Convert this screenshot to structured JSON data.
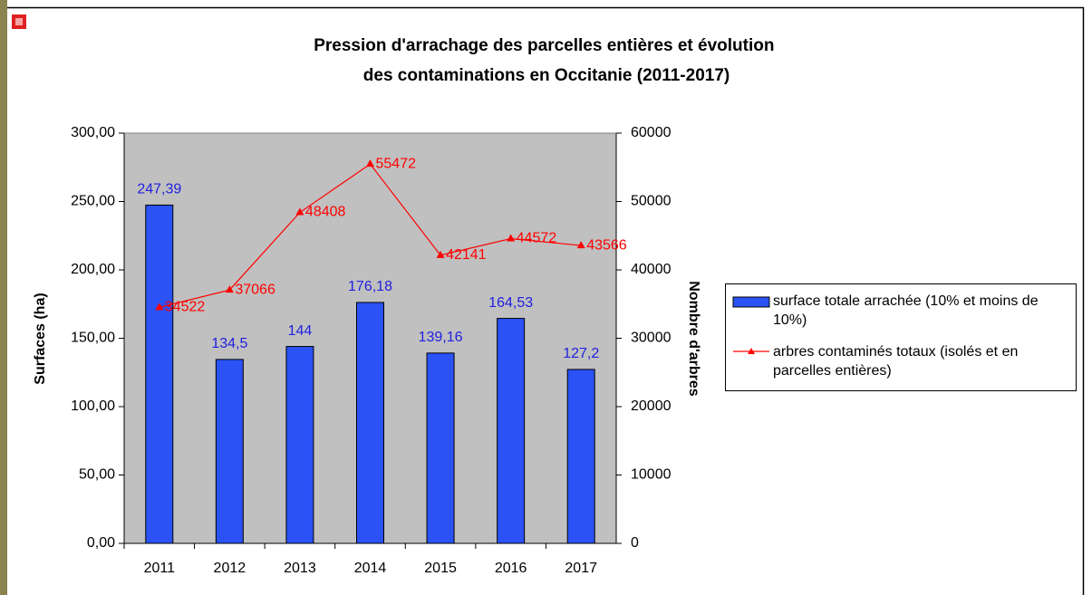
{
  "chart_data": {
    "type": "bar",
    "title": "Pression d'arrachage des parcelles entières et évolution des contaminations en Occitanie (2011-2017)",
    "categories": [
      "2011",
      "2012",
      "2013",
      "2014",
      "2015",
      "2016",
      "2017"
    ],
    "series": [
      {
        "name": "surface totale arrachée (10% et moins de 10%)",
        "type": "bar",
        "color": "#2a52f5",
        "values": [
          247.39,
          134.5,
          144,
          176.18,
          139.16,
          164.53,
          127.2
        ],
        "value_labels": [
          "247,39",
          "134,5",
          "144",
          "176,18",
          "139,16",
          "164,53",
          "127,2"
        ]
      },
      {
        "name": "arbres contaminés totaux (isolés et en parcelles entières)",
        "type": "line",
        "axis": "y2",
        "color": "#ff0000",
        "values": [
          34522,
          37066,
          48408,
          55472,
          42141,
          44572,
          43566
        ]
      }
    ],
    "ylabel": "Surfaces (ha)",
    "y2label": "Nombre d'arbres",
    "ylim": [
      0,
      300
    ],
    "yticks": [
      {
        "value": 0,
        "label": "0,00"
      },
      {
        "value": 50,
        "label": "50,00"
      },
      {
        "value": 100,
        "label": "100,00"
      },
      {
        "value": 150,
        "label": "150,00"
      },
      {
        "value": 200,
        "label": "200,00"
      },
      {
        "value": 250,
        "label": "250,00"
      },
      {
        "value": 300,
        "label": "300,00"
      }
    ],
    "y2lim": [
      0,
      60000
    ],
    "y2ticks": [
      0,
      10000,
      20000,
      30000,
      40000,
      50000,
      60000
    ],
    "plot_background": "#c0c0c0"
  }
}
